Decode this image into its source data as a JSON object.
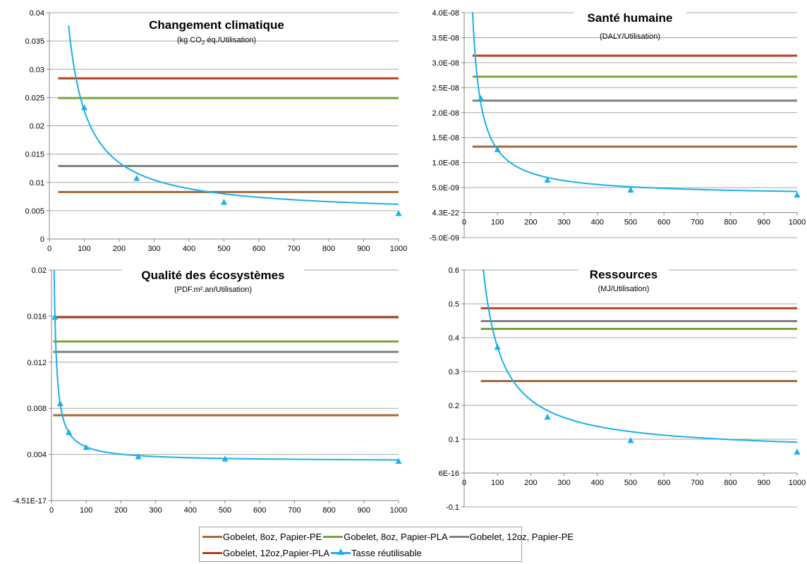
{
  "colors": {
    "gob8_pe": "#a2693a",
    "gob8_pla": "#7ba33b",
    "gob12_pe": "#808080",
    "gob12_pla": "#b3401f",
    "tasse": "#1ab0e8",
    "grid": "#a6a6a6",
    "axis": "#868686"
  },
  "legend": {
    "items": [
      {
        "label": "Gobelet, 8oz, Papier-PE",
        "color": "#a2693a",
        "marker": "none"
      },
      {
        "label": "Gobelet, 8oz, Papier-PLA",
        "color": "#7ba33b",
        "marker": "none"
      },
      {
        "label": "Gobelet, 12oz, Papier-PE",
        "color": "#808080",
        "marker": "none"
      },
      {
        "label": "Gobelet, 12oz,Papier-PLA",
        "color": "#b3401f",
        "marker": "none"
      },
      {
        "label": "Tasse réutilisable",
        "color": "#1ab0e8",
        "marker": "triangle"
      }
    ]
  },
  "chart_data": [
    {
      "type": "line",
      "title": "Changement climatique",
      "subtitle_parts": [
        "(kg CO",
        "2",
        " éq./Utilisation)"
      ],
      "x_ticks": [
        "0",
        "100",
        "200",
        "300",
        "400",
        "500",
        "600",
        "700",
        "800",
        "900",
        "1000"
      ],
      "y_ticks": [
        "0",
        "0.005",
        "0.01",
        "0.015",
        "0.02",
        "0.025",
        "0.03",
        "0.035",
        "0.04"
      ],
      "xlim": [
        0,
        1000
      ],
      "ylim": [
        0,
        0.04
      ],
      "grid": "horizontal",
      "hlines": [
        {
          "name": "Gobelet, 8oz, Papier-PE",
          "value": 0.0083,
          "x_start": 25,
          "x_end": 1000
        },
        {
          "name": "Gobelet, 8oz, Papier-PLA",
          "value": 0.0249,
          "x_start": 25,
          "x_end": 1000
        },
        {
          "name": "Gobelet, 12oz, Papier-PE",
          "value": 0.0129,
          "x_start": 25,
          "x_end": 1000
        },
        {
          "name": "Gobelet, 12oz,Papier-PLA",
          "value": 0.0284,
          "x_start": 25,
          "x_end": 1000
        }
      ],
      "series": [
        {
          "name": "Tasse réutilisable",
          "curve": {
            "a": 0.0043,
            "b": 1.84,
            "x_start": 55,
            "x_end": 1000
          },
          "markers": [
            [
              100,
              0.0232
            ],
            [
              250,
              0.0107
            ],
            [
              500,
              0.0065
            ],
            [
              1000,
              0.0045
            ]
          ]
        }
      ]
    },
    {
      "type": "line",
      "title": "Santé humaine",
      "subtitle_parts": [
        "(DALY/Utilisation)"
      ],
      "x_ticks": [
        "0",
        "100",
        "200",
        "300",
        "400",
        "500",
        "600",
        "700",
        "800",
        "900",
        "1000"
      ],
      "y_ticks": [
        "-5.0E-09",
        "4.3E-22",
        "5.0E-09",
        "1.0E-08",
        "1.5E-08",
        "2.0E-08",
        "2.5E-08",
        "3.0E-08",
        "3.5E-08",
        "4.0E-08"
      ],
      "xlim": [
        0,
        1000
      ],
      "ylim": [
        -5e-09,
        4e-08
      ],
      "x_axis_at": 0,
      "grid": "horizontal",
      "hlines": [
        {
          "name": "Gobelet, 8oz, Papier-PE",
          "value": 1.32e-08,
          "x_start": 25,
          "x_end": 1000
        },
        {
          "name": "Gobelet, 8oz, Papier-PLA",
          "value": 2.72e-08,
          "x_start": 25,
          "x_end": 1000
        },
        {
          "name": "Gobelet, 12oz, Papier-PE",
          "value": 2.24e-08,
          "x_start": 25,
          "x_end": 1000
        },
        {
          "name": "Gobelet, 12oz,Papier-PLA",
          "value": 3.14e-08,
          "x_start": 25,
          "x_end": 1000
        }
      ],
      "series": [
        {
          "name": "Tasse réutilisable",
          "curve": {
            "a": 3.3e-09,
            "b": 9.3e-07,
            "x_start": 24,
            "x_end": 1000
          },
          "markers": [
            [
              50,
              2.28e-08
            ],
            [
              100,
              1.26e-08
            ],
            [
              250,
              6.5e-09
            ],
            [
              500,
              4.5e-09
            ],
            [
              1000,
              3.5e-09
            ]
          ]
        }
      ]
    },
    {
      "type": "line",
      "title": "Qualité des écosystèmes",
      "subtitle_parts": [
        "(PDF.m².an/Utilisation)"
      ],
      "x_ticks": [
        "0",
        "100",
        "200",
        "300",
        "400",
        "500",
        "600",
        "700",
        "800",
        "900",
        "1000"
      ],
      "y_ticks": [
        "-4.51E-17",
        "0.004",
        "0.008",
        "0.012",
        "0.016",
        "0.02"
      ],
      "xlim": [
        0,
        1000
      ],
      "ylim": [
        0,
        0.02
      ],
      "grid": "horizontal",
      "hlines": [
        {
          "name": "Gobelet, 8oz, Papier-PE",
          "value": 0.0074,
          "x_start": 5,
          "x_end": 1000
        },
        {
          "name": "Gobelet, 8oz, Papier-PLA",
          "value": 0.0138,
          "x_start": 5,
          "x_end": 1000
        },
        {
          "name": "Gobelet, 12oz, Papier-PE",
          "value": 0.0129,
          "x_start": 5,
          "x_end": 1000
        },
        {
          "name": "Gobelet, 12oz,Papier-PLA",
          "value": 0.0159,
          "x_start": 5,
          "x_end": 1000
        }
      ],
      "series": [
        {
          "name": "Tasse réutilisable",
          "curve": {
            "a": 0.0034,
            "b": 0.125,
            "x_start": 7.5,
            "x_end": 1000
          },
          "markers": [
            [
              10,
              0.0159
            ],
            [
              25,
              0.0084
            ],
            [
              50,
              0.0059
            ],
            [
              100,
              0.0046
            ],
            [
              250,
              0.0038
            ],
            [
              500,
              0.0036
            ],
            [
              1000,
              0.0034
            ]
          ]
        }
      ]
    },
    {
      "type": "line",
      "title": "Ressources",
      "subtitle_parts": [
        "(MJ/Utilisation)"
      ],
      "x_ticks": [
        "0",
        "100",
        "200",
        "300",
        "400",
        "500",
        "600",
        "700",
        "800",
        "900",
        "1000"
      ],
      "y_ticks": [
        "-0.1",
        "6E-16",
        "0.1",
        "0.2",
        "0.3",
        "0.4",
        "0.5",
        "0.6"
      ],
      "xlim": [
        0,
        1000
      ],
      "ylim": [
        -0.1,
        0.6
      ],
      "x_axis_at": 0,
      "grid": "horizontal",
      "hlines": [
        {
          "name": "Gobelet, 8oz, Papier-PE",
          "value": 0.272,
          "x_start": 50,
          "x_end": 1000
        },
        {
          "name": "Gobelet, 8oz, Papier-PLA",
          "value": 0.426,
          "x_start": 50,
          "x_end": 1000
        },
        {
          "name": "Gobelet, 12oz, Papier-PE",
          "value": 0.449,
          "x_start": 50,
          "x_end": 1000
        },
        {
          "name": "Gobelet, 12oz,Papier-PLA",
          "value": 0.487,
          "x_start": 50,
          "x_end": 1000
        }
      ],
      "series": [
        {
          "name": "Tasse réutilisable",
          "curve": {
            "a": 0.06,
            "b": 31.2,
            "x_start": 55,
            "x_end": 1000
          },
          "markers": [
            [
              100,
              0.372
            ],
            [
              250,
              0.165
            ],
            [
              500,
              0.096
            ],
            [
              1000,
              0.062
            ]
          ]
        }
      ]
    }
  ]
}
